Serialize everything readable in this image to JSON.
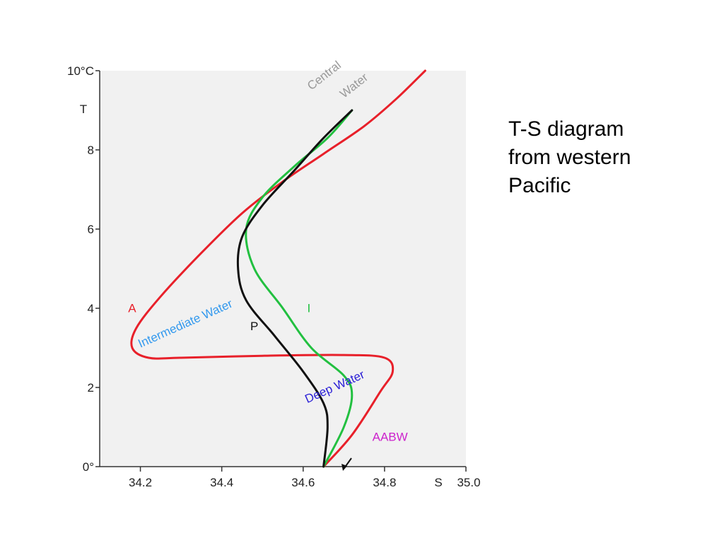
{
  "caption": {
    "lines": [
      "T-S diagram",
      "from western",
      "Pacific"
    ]
  },
  "chart_data": {
    "type": "line",
    "title": "",
    "xlabel": "S",
    "ylabel": "T",
    "xlim": [
      34.1,
      35.0
    ],
    "ylim": [
      0,
      10
    ],
    "x_ticks": [
      {
        "value": 34.2,
        "label": "34.2"
      },
      {
        "value": 34.4,
        "label": "34.4"
      },
      {
        "value": 34.6,
        "label": "34.6"
      },
      {
        "value": 34.8,
        "label": "34.8"
      },
      {
        "value": 35.0,
        "label": "35.0"
      }
    ],
    "y_ticks": [
      {
        "value": 0,
        "label": "0°"
      },
      {
        "value": 2,
        "label": "2"
      },
      {
        "value": 4,
        "label": "4"
      },
      {
        "value": 6,
        "label": "6"
      },
      {
        "value": 8,
        "label": "8"
      },
      {
        "value": 10,
        "label": "10°C"
      }
    ],
    "grid": false,
    "series": [
      {
        "name": "A",
        "color": "#e8202a",
        "points": [
          [
            34.65,
            0.0
          ],
          [
            34.72,
            0.8
          ],
          [
            34.79,
            1.9
          ],
          [
            34.82,
            2.4
          ],
          [
            34.8,
            2.75
          ],
          [
            34.7,
            2.82
          ],
          [
            34.5,
            2.8
          ],
          [
            34.3,
            2.75
          ],
          [
            34.22,
            2.75
          ],
          [
            34.18,
            3.0
          ],
          [
            34.19,
            3.5
          ],
          [
            34.25,
            4.3
          ],
          [
            34.35,
            5.4
          ],
          [
            34.45,
            6.4
          ],
          [
            34.55,
            7.2
          ],
          [
            34.65,
            7.9
          ],
          [
            34.75,
            8.6
          ],
          [
            34.83,
            9.3
          ],
          [
            34.9,
            10.0
          ]
        ]
      },
      {
        "name": "P",
        "color": "#111111",
        "points": [
          [
            34.65,
            0.0
          ],
          [
            34.66,
            1.0
          ],
          [
            34.65,
            1.6
          ],
          [
            34.6,
            2.4
          ],
          [
            34.53,
            3.3
          ],
          [
            34.46,
            4.2
          ],
          [
            34.44,
            5.0
          ],
          [
            34.45,
            5.8
          ],
          [
            34.5,
            6.6
          ],
          [
            34.58,
            7.5
          ],
          [
            34.65,
            8.3
          ],
          [
            34.72,
            9.0
          ]
        ]
      },
      {
        "name": "I",
        "color": "#22c040",
        "points": [
          [
            34.65,
            0.0
          ],
          [
            34.7,
            1.0
          ],
          [
            34.72,
            1.8
          ],
          [
            34.7,
            2.3
          ],
          [
            34.62,
            3.0
          ],
          [
            34.55,
            4.0
          ],
          [
            34.48,
            5.0
          ],
          [
            34.46,
            6.0
          ],
          [
            34.5,
            6.8
          ],
          [
            34.58,
            7.6
          ],
          [
            34.66,
            8.3
          ],
          [
            34.72,
            9.0
          ]
        ]
      }
    ],
    "annotations": [
      {
        "text": "A",
        "x": 34.17,
        "y": 3.9,
        "color": "#e8202a"
      },
      {
        "text": "P",
        "x": 34.47,
        "y": 3.45,
        "color": "#111111"
      },
      {
        "text": "I",
        "x": 34.61,
        "y": 3.9,
        "color": "#22c040"
      },
      {
        "text": "Intermediate Water",
        "x": 34.2,
        "y": 3.0,
        "color": "#3399ee",
        "rotate": -24
      },
      {
        "text": "Deep Water",
        "x": 34.61,
        "y": 1.6,
        "color": "#2a1fd6",
        "rotate": -24
      },
      {
        "text": "Central",
        "x": 34.62,
        "y": 9.5,
        "color": "#999999",
        "rotate": -38
      },
      {
        "text": "Water",
        "x": 34.7,
        "y": 9.3,
        "color": "#999999",
        "rotate": -38
      },
      {
        "text": "AABW",
        "x": 34.77,
        "y": 0.65,
        "color": "#cc22cc"
      }
    ]
  }
}
